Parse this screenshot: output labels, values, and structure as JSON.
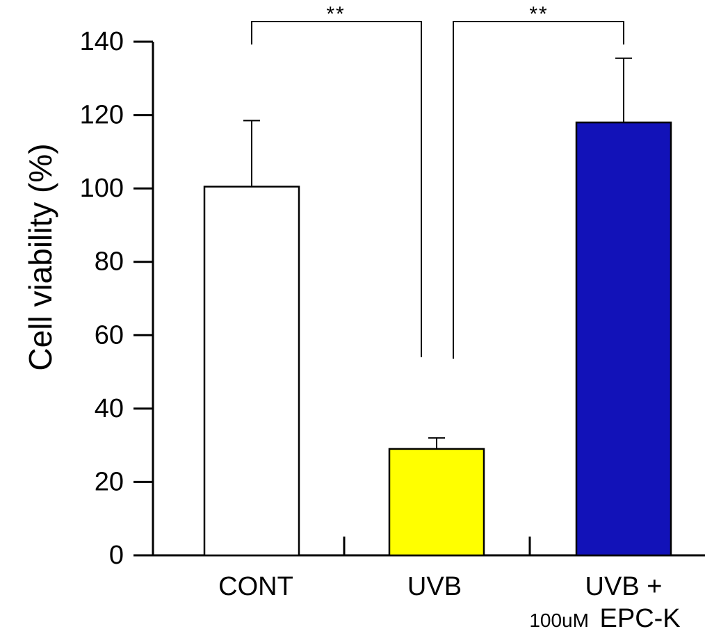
{
  "chart_data": {
    "type": "bar",
    "ylabel": "Cell viability (%)",
    "ylim": [
      0,
      140
    ],
    "yticks": [
      0,
      20,
      40,
      60,
      80,
      100,
      120,
      140
    ],
    "grid": false,
    "categories": [
      {
        "label": "CONT",
        "label_line2": "",
        "label_line2_small": "",
        "label_line2_large": ""
      },
      {
        "label": "UVB",
        "label_line2": "",
        "label_line2_small": "",
        "label_line2_large": ""
      },
      {
        "label": "UVB +",
        "label_line2": "100uM_EPC-K",
        "label_line2_small": "100uM_",
        "label_line2_large": "EPC-K"
      }
    ],
    "values": [
      100.5,
      29,
      118
    ],
    "errors": [
      18,
      3,
      17.5
    ],
    "colors": [
      "#ffffff",
      "#ffff00",
      "#1212b8"
    ],
    "bar_stroke": "#000000",
    "significance": [
      {
        "between": [
          0,
          1
        ],
        "label": "**"
      },
      {
        "between": [
          1,
          2
        ],
        "label": "**"
      }
    ]
  }
}
